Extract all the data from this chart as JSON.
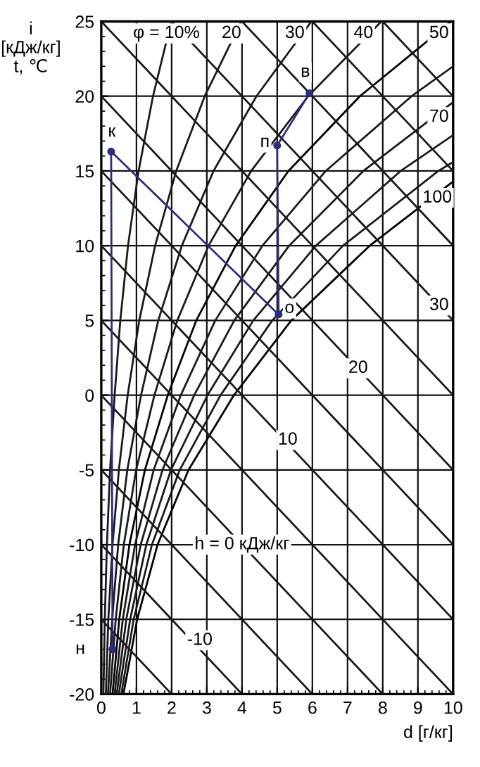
{
  "chart_data": {
    "type": "line",
    "xlabel": "d [г/кг]",
    "ylabel": "i\n[кДж/кг]\nt, ℃",
    "xlim": [
      0,
      10
    ],
    "ylim": [
      -20,
      25
    ],
    "xticks": [
      0,
      1,
      2,
      3,
      4,
      5,
      6,
      7,
      8,
      9,
      10
    ],
    "yticks": [
      -20,
      -15,
      -10,
      -5,
      0,
      5,
      10,
      15,
      20,
      25
    ],
    "grid": true,
    "legend": false,
    "series": [
      {
        "color": "#1a1a1a",
        "x": [
          0.06,
          0.1,
          0.16,
          0.25,
          0.38,
          0.54,
          0.76,
          1.06,
          1.47,
          1.99
        ],
        "values": [
          -20,
          -15,
          -10,
          -5,
          0,
          5,
          10,
          15,
          20,
          25
        ]
      },
      {
        "color": "#1a1a1a",
        "x": [
          0.13,
          0.2,
          0.32,
          0.5,
          0.75,
          1.08,
          1.53,
          2.13,
          2.94,
          3.98
        ],
        "values": [
          -20,
          -15,
          -10,
          -5,
          0,
          5,
          10,
          15,
          20,
          25
        ]
      },
      {
        "color": "#1a1a1a",
        "x": [
          0.19,
          0.31,
          0.48,
          0.74,
          1.13,
          1.62,
          2.29,
          3.19,
          4.41,
          5.97
        ],
        "values": [
          -20,
          -15,
          -10,
          -5,
          0,
          5,
          10,
          15,
          20,
          25
        ]
      },
      {
        "color": "#1a1a1a",
        "x": [
          0.25,
          0.41,
          0.64,
          0.99,
          1.51,
          2.16,
          3.05,
          4.26,
          5.88,
          7.96
        ],
        "values": [
          -20,
          -15,
          -10,
          -5,
          0,
          5,
          10,
          15,
          20,
          25
        ]
      },
      {
        "color": "#000000",
        "x": [
          0.32,
          0.51,
          0.8,
          1.24,
          1.89,
          2.7,
          3.82,
          5.32,
          7.35,
          9.95
        ],
        "values": [
          -20,
          -15,
          -10,
          -5,
          0,
          5,
          10,
          15,
          20,
          25
        ]
      },
      {
        "color": "#1a1a1a",
        "x": [
          0.38,
          0.61,
          0.96,
          1.49,
          2.26,
          3.24,
          4.58,
          6.38,
          8.82,
          10
        ],
        "values": [
          -20,
          -15,
          -10,
          -5,
          0,
          5,
          10,
          15,
          20,
          22.0
        ]
      },
      {
        "color": "#1a1a1a",
        "x": [
          0.44,
          0.71,
          1.12,
          1.74,
          2.64,
          3.78,
          5.34,
          7.45,
          10
        ],
        "values": [
          -20,
          -15,
          -10,
          -5,
          0,
          5,
          10,
          15,
          19.6
        ]
      },
      {
        "color": "#1a1a1a",
        "x": [
          0.5,
          0.82,
          1.28,
          1.98,
          3.02,
          4.32,
          6.1,
          8.51,
          10
        ],
        "values": [
          -20,
          -15,
          -10,
          -5,
          0,
          5,
          10,
          15,
          17.4
        ]
      },
      {
        "color": "#1a1a1a",
        "x": [
          0.57,
          0.92,
          1.44,
          2.23,
          3.39,
          4.86,
          6.87,
          9.58,
          10
        ],
        "values": [
          -20,
          -15,
          -10,
          -5,
          0,
          5,
          10,
          15,
          15.6
        ]
      },
      {
        "color": "#000000",
        "x": [
          0.63,
          1.02,
          1.6,
          2.48,
          3.77,
          5.4,
          7.63,
          10
        ],
        "values": [
          -20,
          -15,
          -10,
          -5,
          0,
          5,
          10,
          14.3
        ]
      },
      {
        "color": "#1a1a1a",
        "x": [
          0,
          2
        ],
        "values": [
          -15,
          -20
        ]
      },
      {
        "color": "#1a1a1a",
        "x": [
          0,
          4
        ],
        "values": [
          -10,
          -20
        ]
      },
      {
        "color": "#1a1a1a",
        "x": [
          0,
          6
        ],
        "values": [
          -5,
          -20
        ]
      },
      {
        "color": "#1a1a1a",
        "x": [
          0,
          8
        ],
        "values": [
          0,
          -20
        ]
      },
      {
        "color": "#1a1a1a",
        "x": [
          0,
          10
        ],
        "values": [
          5,
          -20
        ]
      },
      {
        "color": "#1a1a1a",
        "x": [
          0,
          10
        ],
        "values": [
          10,
          -15
        ]
      },
      {
        "color": "#1a1a1a",
        "x": [
          0,
          10
        ],
        "values": [
          15,
          -10
        ]
      },
      {
        "color": "#1a1a1a",
        "x": [
          0,
          10
        ],
        "values": [
          20,
          -5
        ]
      },
      {
        "color": "#1a1a1a",
        "x": [
          0,
          10
        ],
        "values": [
          25,
          0
        ]
      },
      {
        "color": "#1a1a1a",
        "x": [
          2,
          10
        ],
        "values": [
          25,
          5
        ]
      },
      {
        "color": "#1a1a1a",
        "x": [
          4,
          10
        ],
        "values": [
          25,
          10
        ]
      },
      {
        "color": "#1a1a1a",
        "x": [
          6,
          10
        ],
        "values": [
          25,
          15
        ]
      },
      {
        "color": "#1a1a1a",
        "x": [
          8,
          10
        ],
        "values": [
          25,
          20
        ]
      },
      {
        "color": "#2b2f7a",
        "marker": "circle",
        "x": [
          0.32,
          0.28,
          5.04,
          5.0,
          5.92
        ],
        "values": [
          -17.0,
          16.3,
          5.4,
          16.7,
          20.2
        ]
      }
    ],
    "annotations": [
      {
        "text": "φ = 10%",
        "x": 1.85,
        "y": 24.2
      },
      {
        "text": "20",
        "x": 3.7,
        "y": 24.2
      },
      {
        "text": "30",
        "x": 5.5,
        "y": 24.2
      },
      {
        "text": "40",
        "x": 7.45,
        "y": 24.2
      },
      {
        "text": "50",
        "x": 9.6,
        "y": 24.2
      },
      {
        "text": "70",
        "x": 9.6,
        "y": 18.6
      },
      {
        "text": "100",
        "x": 9.55,
        "y": 13.2
      },
      {
        "text": "30",
        "x": 9.6,
        "y": 6.0
      },
      {
        "text": "20",
        "x": 7.3,
        "y": 1.8
      },
      {
        "text": "10",
        "x": 5.3,
        "y": -3.0
      },
      {
        "text": "h = 0 кДж/кг",
        "x": 4.0,
        "y": -10
      },
      {
        "text": "-10",
        "x": 2.8,
        "y": -16.4
      },
      {
        "text": "к",
        "x": 0.3,
        "y": 17.6
      },
      {
        "text": "в",
        "x": 5.8,
        "y": 21.6
      },
      {
        "text": "п",
        "x": 4.65,
        "y": 16.9
      },
      {
        "text": "о",
        "x": 5.35,
        "y": 5.8
      },
      {
        "text": "н",
        "x": 0.32,
        "y": -17.0
      }
    ]
  }
}
